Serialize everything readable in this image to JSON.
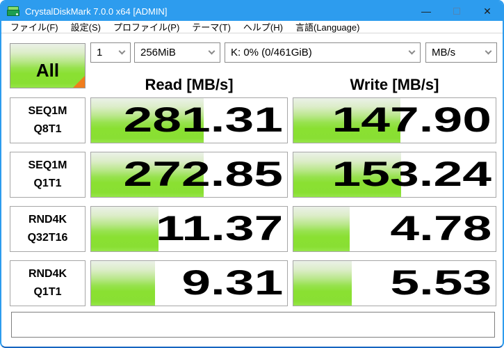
{
  "titlebar": {
    "title": "CrystalDiskMark 7.0.0 x64 [ADMIN]",
    "minimize_icon": "—",
    "close_icon": "✕"
  },
  "menu": {
    "items": [
      {
        "label": "ファイル(F)"
      },
      {
        "label": "設定(S)"
      },
      {
        "label": "プロファイル(P)"
      },
      {
        "label": "テーマ(T)"
      },
      {
        "label": "ヘルプ(H)"
      },
      {
        "label": "言語(Language)"
      }
    ]
  },
  "controls": {
    "all_button": "All",
    "test_count": "1",
    "test_size": "256MiB",
    "target_drive": "K: 0% (0/461GiB)",
    "unit": "MB/s"
  },
  "columns": {
    "read": "Read [MB/s]",
    "write": "Write [MB/s]"
  },
  "rows": [
    {
      "label1": "SEQ1M",
      "label2": "Q8T1",
      "read": "281.31",
      "write": "147.90"
    },
    {
      "label1": "SEQ1M",
      "label2": "Q1T1",
      "read": "272.85",
      "write": "153.24"
    },
    {
      "label1": "RND4K",
      "label2": "Q32T16",
      "read": "11.37",
      "write": "4.78"
    },
    {
      "label1": "RND4K",
      "label2": "Q1T1",
      "read": "9.31",
      "write": "5.53"
    }
  ],
  "status_bar": {
    "text": ""
  },
  "colors": {
    "titlebar_blue": "#2d9cee",
    "bar_green": "#8ae032",
    "bar_green_light": "#ebf1e8",
    "corner_orange": "#f07d1d"
  }
}
